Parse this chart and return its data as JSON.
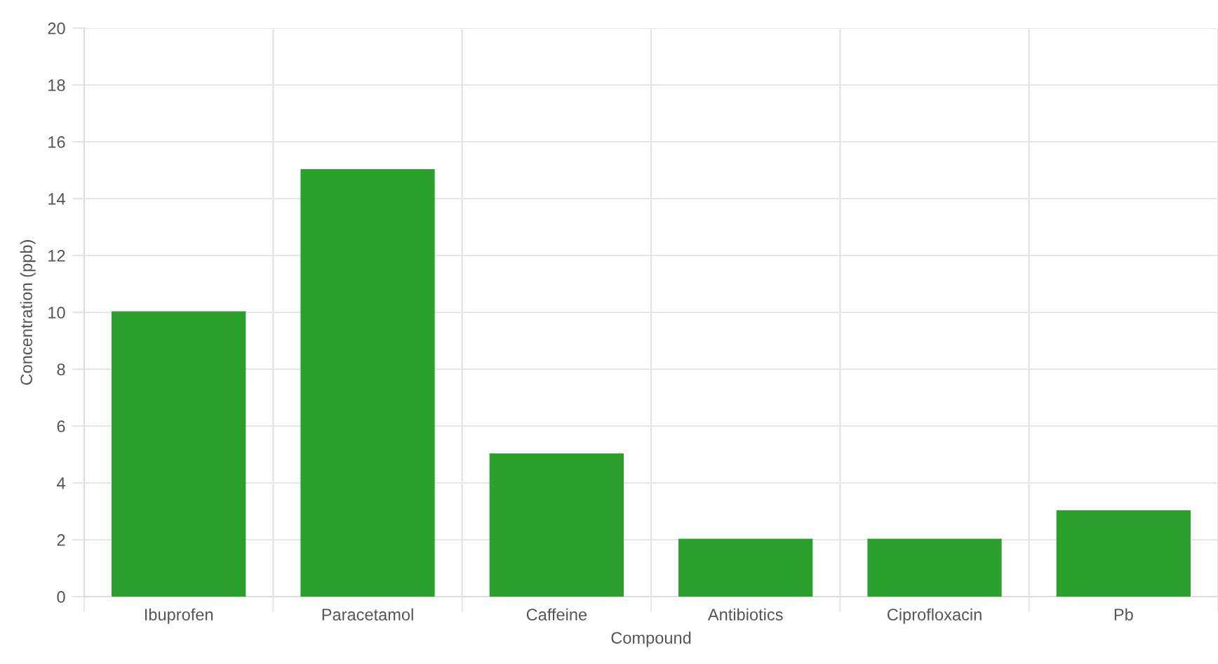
{
  "chart_data": {
    "type": "bar",
    "xlabel": "Compound",
    "ylabel": "Concentration (ppb)",
    "categories": [
      "Ibuprofen",
      "Paracetamol",
      "Caffeine",
      "Antibiotics",
      "Ciprofloxacin",
      "Pb"
    ],
    "values": [
      10,
      15,
      5,
      2,
      2,
      3
    ],
    "color": "#2ca02c",
    "ylim": [
      0,
      20
    ],
    "yticks": [
      0,
      2,
      4,
      6,
      8,
      10,
      12,
      14,
      16,
      18,
      20
    ],
    "grid": true
  }
}
